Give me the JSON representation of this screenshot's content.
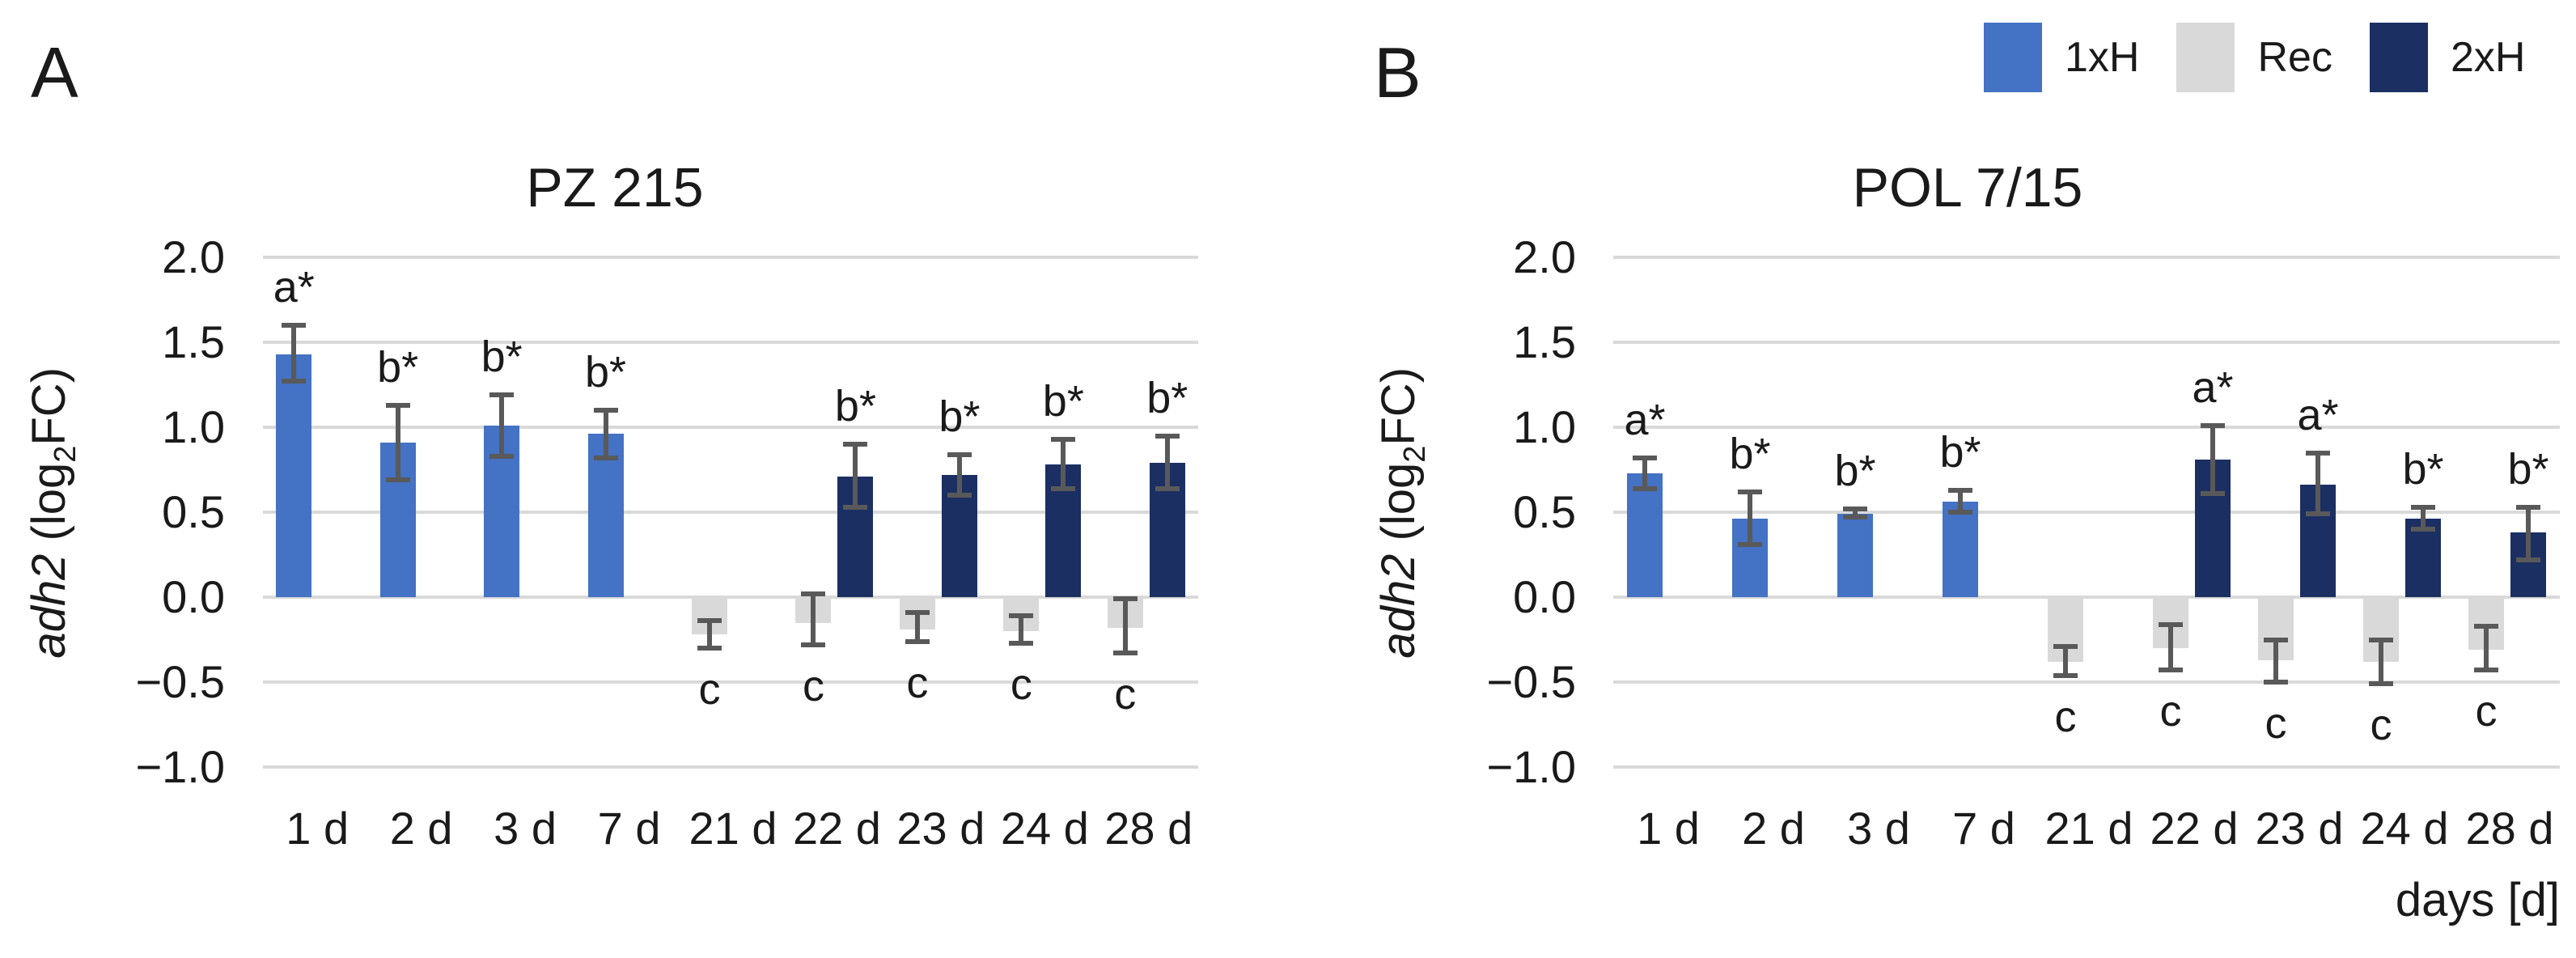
{
  "figure": {
    "background": "#ffffff",
    "text_color": "#212121",
    "gridline_color": "#d9d9d9",
    "error_bar_color": "#595959"
  },
  "legend": {
    "position": "top-right",
    "items": [
      {
        "label": "1xH",
        "color": "#4472c4"
      },
      {
        "label": "Rec",
        "color": "#d9d9d9"
      },
      {
        "label": "2xH",
        "color": "#1b2f62"
      }
    ]
  },
  "axis": {
    "ylabel": {
      "gene": "adh2",
      "pre": " (log",
      "sub": "2",
      "post": "FC)"
    },
    "xlabel": "days [d]",
    "ylim": [
      -1.0,
      2.0
    ],
    "grid": true,
    "yticks": [
      {
        "label": "2.0",
        "value": 2.0
      },
      {
        "label": "1.5",
        "value": 1.5
      },
      {
        "label": "1.0",
        "value": 1.0
      },
      {
        "label": "0.5",
        "value": 0.5
      },
      {
        "label": "0.0",
        "value": 0.0
      },
      {
        "label": "−0.5",
        "value": -0.5
      },
      {
        "label": "−1.0",
        "value": -1.0
      }
    ]
  },
  "chart_data": [
    {
      "type": "bar",
      "panel_letter": "A",
      "title": "PZ 215",
      "categories": [
        "1 d",
        "2 d",
        "3 d",
        "7 d",
        "21 d",
        "22 d",
        "23 d",
        "24 d",
        "28 d"
      ],
      "bars": [
        {
          "category": "1 d",
          "series": "1xH",
          "value": 1.43,
          "err_hi": 1.6,
          "err_lo": 1.27,
          "sig": "a*"
        },
        {
          "category": "2 d",
          "series": "1xH",
          "value": 0.91,
          "err_hi": 1.13,
          "err_lo": 0.69,
          "sig": "b*"
        },
        {
          "category": "3 d",
          "series": "1xH",
          "value": 1.01,
          "err_hi": 1.19,
          "err_lo": 0.83,
          "sig": "b*"
        },
        {
          "category": "7 d",
          "series": "1xH",
          "value": 0.96,
          "err_hi": 1.1,
          "err_lo": 0.82,
          "sig": "b*"
        },
        {
          "category": "21 d",
          "series": "Rec",
          "value": -0.22,
          "err_hi": -0.14,
          "err_lo": -0.3,
          "sig": "c"
        },
        {
          "category": "22 d",
          "series": "Rec",
          "value": -0.15,
          "err_hi": 0.02,
          "err_lo": -0.28,
          "sig": "c"
        },
        {
          "category": "22 d",
          "series": "2xH",
          "value": 0.71,
          "err_hi": 0.9,
          "err_lo": 0.53,
          "sig": "b*"
        },
        {
          "category": "23 d",
          "series": "Rec",
          "value": -0.19,
          "err_hi": -0.09,
          "err_lo": -0.26,
          "sig": "c"
        },
        {
          "category": "23 d",
          "series": "2xH",
          "value": 0.72,
          "err_hi": 0.84,
          "err_lo": 0.6,
          "sig": "b*"
        },
        {
          "category": "24 d",
          "series": "Rec",
          "value": -0.2,
          "err_hi": -0.11,
          "err_lo": -0.27,
          "sig": "c"
        },
        {
          "category": "24 d",
          "series": "2xH",
          "value": 0.78,
          "err_hi": 0.93,
          "err_lo": 0.64,
          "sig": "b*"
        },
        {
          "category": "28 d",
          "series": "Rec",
          "value": -0.18,
          "err_hi": -0.01,
          "err_lo": -0.33,
          "sig": "c"
        },
        {
          "category": "28 d",
          "series": "2xH",
          "value": 0.79,
          "err_hi": 0.95,
          "err_lo": 0.64,
          "sig": "b*"
        }
      ]
    },
    {
      "type": "bar",
      "panel_letter": "B",
      "title": "POL 7/15",
      "categories": [
        "1 d",
        "2 d",
        "3 d",
        "7 d",
        "21 d",
        "22 d",
        "23 d",
        "24 d",
        "28 d"
      ],
      "bars": [
        {
          "category": "1 d",
          "series": "1xH",
          "value": 0.73,
          "err_hi": 0.82,
          "err_lo": 0.64,
          "sig": "a*"
        },
        {
          "category": "2 d",
          "series": "1xH",
          "value": 0.46,
          "err_hi": 0.62,
          "err_lo": 0.31,
          "sig": "b*"
        },
        {
          "category": "3 d",
          "series": "1xH",
          "value": 0.49,
          "err_hi": 0.52,
          "err_lo": 0.47,
          "sig": "b*"
        },
        {
          "category": "7 d",
          "series": "1xH",
          "value": 0.56,
          "err_hi": 0.63,
          "err_lo": 0.5,
          "sig": "b*"
        },
        {
          "category": "21 d",
          "series": "Rec",
          "value": -0.38,
          "err_hi": -0.29,
          "err_lo": -0.46,
          "sig": "c"
        },
        {
          "category": "22 d",
          "series": "Rec",
          "value": -0.3,
          "err_hi": -0.16,
          "err_lo": -0.43,
          "sig": "c"
        },
        {
          "category": "22 d",
          "series": "2xH",
          "value": 0.81,
          "err_hi": 1.01,
          "err_lo": 0.61,
          "sig": "a*"
        },
        {
          "category": "23 d",
          "series": "Rec",
          "value": -0.37,
          "err_hi": -0.25,
          "err_lo": -0.5,
          "sig": "c"
        },
        {
          "category": "23 d",
          "series": "2xH",
          "value": 0.66,
          "err_hi": 0.85,
          "err_lo": 0.49,
          "sig": "a*"
        },
        {
          "category": "24 d",
          "series": "Rec",
          "value": -0.38,
          "err_hi": -0.25,
          "err_lo": -0.51,
          "sig": "c"
        },
        {
          "category": "24 d",
          "series": "2xH",
          "value": 0.46,
          "err_hi": 0.53,
          "err_lo": 0.4,
          "sig": "b*"
        },
        {
          "category": "28 d",
          "series": "Rec",
          "value": -0.31,
          "err_hi": -0.17,
          "err_lo": -0.43,
          "sig": "c"
        },
        {
          "category": "28 d",
          "series": "2xH",
          "value": 0.38,
          "err_hi": 0.53,
          "err_lo": 0.22,
          "sig": "b*"
        }
      ]
    }
  ]
}
